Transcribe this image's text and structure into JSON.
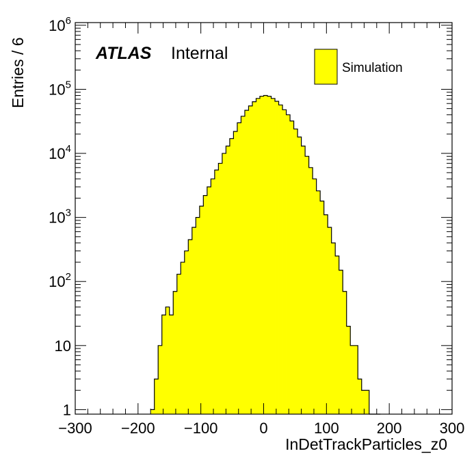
{
  "chart_data": {
    "type": "bar",
    "title": "",
    "xlabel": "InDetTrackParticles_z0",
    "ylabel": "Entries / 6",
    "xlim": [
      -300,
      300
    ],
    "ylim": [
      0.85,
      1100000
    ],
    "yscale": "log",
    "grid": false,
    "legend_position": "top-right",
    "bin_width": 6,
    "x_ticks": [
      "−300",
      "−200",
      "−100",
      "0",
      "100",
      "200",
      "300"
    ],
    "x_tick_values": [
      -300,
      -200,
      -100,
      0,
      100,
      200,
      300
    ],
    "y_ticks": [
      {
        "value": 1,
        "base": "1",
        "exp": ""
      },
      {
        "value": 10,
        "base": "10",
        "exp": ""
      },
      {
        "value": 100,
        "base": "10",
        "exp": "2"
      },
      {
        "value": 1000,
        "base": "10",
        "exp": "3"
      },
      {
        "value": 10000,
        "base": "10",
        "exp": "4"
      },
      {
        "value": 100000,
        "base": "10",
        "exp": "5"
      },
      {
        "value": 1000000,
        "base": "10",
        "exp": "6"
      }
    ],
    "series": [
      {
        "name": "Simulation",
        "color": "#ffff00",
        "edge_color": "#000000",
        "bin_low_edges": [
          -180,
          -174,
          -168,
          -162,
          -156,
          -150,
          -144,
          -138,
          -132,
          -126,
          -120,
          -114,
          -108,
          -102,
          -96,
          -90,
          -84,
          -78,
          -72,
          -66,
          -60,
          -54,
          -48,
          -42,
          -36,
          -30,
          -24,
          -18,
          -12,
          -6,
          0,
          6,
          12,
          18,
          24,
          30,
          36,
          42,
          48,
          54,
          60,
          66,
          72,
          78,
          84,
          90,
          96,
          102,
          108,
          114,
          120,
          126,
          132,
          138,
          144,
          150,
          156,
          162,
          168,
          174,
          180
        ],
        "values": [
          1,
          3,
          10,
          30,
          40,
          30,
          70,
          130,
          200,
          300,
          450,
          700,
          1000,
          1500,
          2200,
          3000,
          4000,
          5500,
          7000,
          10000,
          13000,
          17000,
          22000,
          30000,
          38000,
          47000,
          55000,
          64000,
          72000,
          78000,
          80000,
          78000,
          72000,
          65000,
          57000,
          48000,
          40000,
          32000,
          24000,
          18000,
          13000,
          9000,
          6000,
          4000,
          2600,
          1800,
          1100,
          700,
          400,
          250,
          150,
          70,
          20,
          10,
          10,
          3,
          2,
          2,
          0,
          0,
          0
        ]
      }
    ],
    "annotations": {
      "experiment": "ATLAS",
      "status": "Internal"
    }
  }
}
